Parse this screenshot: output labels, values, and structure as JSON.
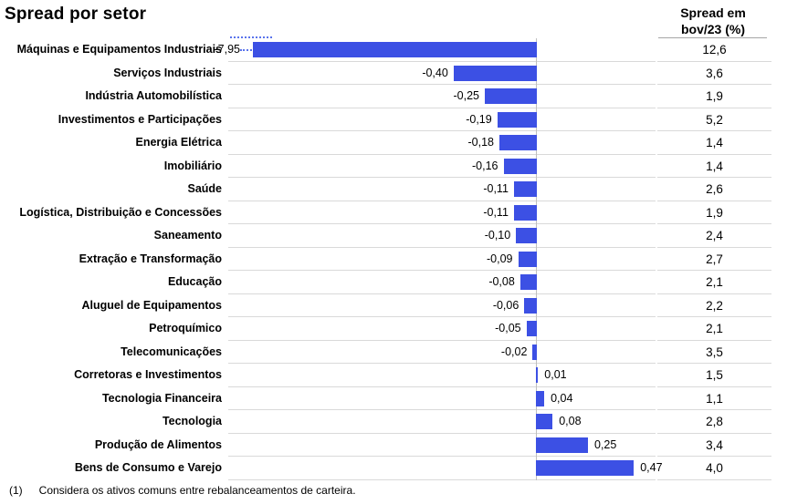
{
  "title": "Spread por setor",
  "right_header": "Spread em\nbov/23 (%)",
  "footnote": {
    "marker": "(1)",
    "text": "Considera os ativos comuns entre rebalanceamentos de carteira."
  },
  "colors": {
    "bar": "#3c50e4",
    "gridline": "#d9d9d9",
    "axis_line": "#bfbfbf",
    "break_dots": "#5a74ec"
  },
  "chart_data": {
    "type": "bar",
    "orientation": "horizontal",
    "title": "Spread por setor",
    "categories": [
      "Máquinas e Equipamentos Industriais",
      "Serviços Industriais",
      "Indústria Automobilística",
      "Investimentos e Participações",
      "Energia Elétrica",
      "Imobiliário",
      "Saúde",
      "Logística, Distribuição e Concessões",
      "Saneamento",
      "Extração e Transformação",
      "Educação",
      "Aluguel de Equipamentos",
      "Petroquímico",
      "Telecomunicações",
      "Corretoras e Investimentos",
      "Tecnologia Financeira",
      "Tecnologia",
      "Produção de Alimentos",
      "Bens de Consumo e Varejo"
    ],
    "series": [
      {
        "name": "Spread",
        "values": [
          -7.95,
          -0.4,
          -0.25,
          -0.19,
          -0.18,
          -0.16,
          -0.11,
          -0.11,
          -0.1,
          -0.09,
          -0.08,
          -0.06,
          -0.05,
          -0.02,
          0.01,
          0.04,
          0.08,
          0.25,
          0.47
        ],
        "labels": [
          "-7,95",
          "-0,40",
          "-0,25",
          "-0,19",
          "-0,18",
          "-0,16",
          "-0,11",
          "-0,11",
          "-0,10",
          "-0,09",
          "-0,08",
          "-0,06",
          "-0,05",
          "-0,02",
          "0,01",
          "0,04",
          "0,08",
          "0,25",
          "0,47"
        ]
      },
      {
        "name": "Spread em bov/23 (%)",
        "values": [
          12.6,
          3.6,
          1.9,
          5.2,
          1.4,
          1.4,
          2.6,
          1.9,
          2.4,
          2.7,
          2.1,
          2.2,
          2.1,
          3.5,
          1.5,
          1.1,
          2.8,
          3.4,
          4.0
        ],
        "labels": [
          "12,6",
          "3,6",
          "1,9",
          "5,2",
          "1,4",
          "1,4",
          "2,6",
          "1,9",
          "2,4",
          "2,7",
          "2,1",
          "2,2",
          "2,1",
          "3,5",
          "1,5",
          "1,1",
          "2,8",
          "3,4",
          "4,0"
        ]
      }
    ],
    "axis_break": {
      "row_index": 0,
      "reason": "bar for -7,95 truncated with dotted break marks"
    },
    "grid": "horizontal row separators",
    "legend": "none"
  }
}
